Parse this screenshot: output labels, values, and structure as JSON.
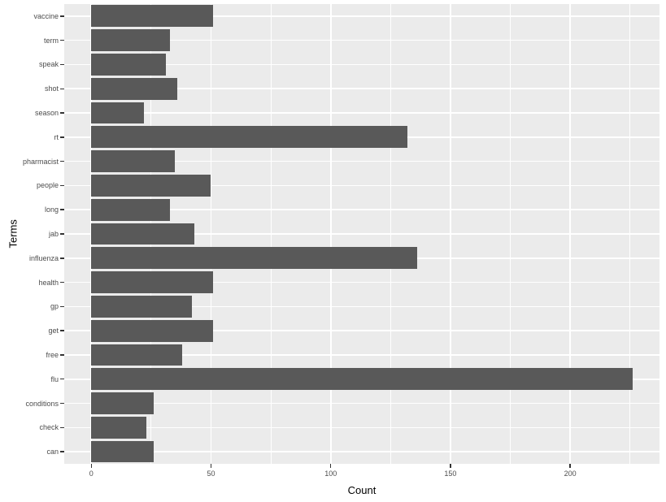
{
  "chart_data": {
    "type": "bar",
    "orientation": "horizontal",
    "title": "",
    "xlabel": "Count",
    "ylabel": "Terms",
    "categories": [
      "vaccine",
      "term",
      "speak",
      "shot",
      "season",
      "rt",
      "pharmacist",
      "people",
      "long",
      "jab",
      "influenza",
      "health",
      "gp",
      "get",
      "free",
      "flu",
      "conditions",
      "check",
      "can"
    ],
    "values": [
      51,
      33,
      31,
      36,
      22,
      132,
      35,
      50,
      33,
      43,
      136,
      51,
      42,
      51,
      38,
      226,
      26,
      23,
      26
    ],
    "x_major_ticks": [
      0,
      50,
      100,
      150,
      200
    ],
    "x_minor_ticks": [
      25,
      75,
      125,
      175,
      225
    ],
    "xlim": [
      -11.3,
      237.3
    ],
    "grid": true,
    "legend_position": "none",
    "bar_color": "#595959",
    "panel_background": "#EBEBEB",
    "grid_color": "#FFFFFF",
    "tick_label_color": "#4D4D4D",
    "axis_title_color": "#000000"
  }
}
